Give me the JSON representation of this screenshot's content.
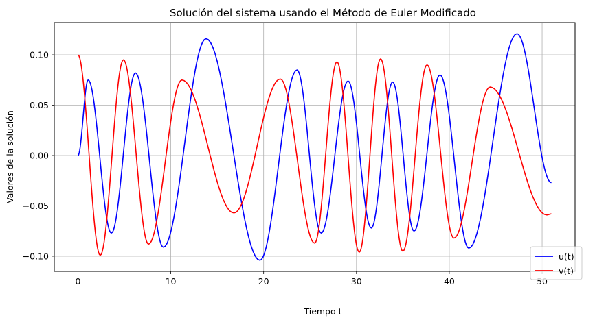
{
  "chart_data": {
    "type": "line",
    "title": "Solución del sistema usando el Método de Euler Modificado",
    "xlabel": "Tiempo t",
    "ylabel": "Valores de la solución",
    "xlim": [
      -2.55,
      53.55
    ],
    "ylim": [
      -0.115,
      0.132
    ],
    "xticks": [
      0,
      10,
      20,
      30,
      40,
      50
    ],
    "xtick_labels": [
      "0",
      "10",
      "20",
      "30",
      "40",
      "50"
    ],
    "yticks": [
      -0.1,
      -0.05,
      0.0,
      0.05,
      0.1
    ],
    "ytick_labels": [
      "−0.10",
      "−0.05",
      "0.00",
      "0.05",
      "0.10"
    ],
    "grid": true,
    "legend_position": "lower-right",
    "series": [
      {
        "name": "u(t)",
        "color": "#0000ff",
        "points": [
          [
            0,
            0
          ],
          [
            1.1,
            0.075
          ],
          [
            3.6,
            -0.077
          ],
          [
            6.2,
            0.082
          ],
          [
            9.2,
            -0.091
          ],
          [
            13.8,
            0.116
          ],
          [
            19.6,
            -0.104
          ],
          [
            23.6,
            0.085
          ],
          [
            26.2,
            -0.077
          ],
          [
            29.1,
            0.074
          ],
          [
            31.6,
            -0.072
          ],
          [
            33.9,
            0.073
          ],
          [
            36.2,
            -0.075
          ],
          [
            39.0,
            0.08
          ],
          [
            42.1,
            -0.092
          ],
          [
            47.3,
            0.121
          ],
          [
            51,
            -0.027
          ]
        ]
      },
      {
        "name": "v(t)",
        "color": "#ff0000",
        "points": [
          [
            0,
            0.1
          ],
          [
            2.4,
            -0.099
          ],
          [
            4.9,
            0.095
          ],
          [
            7.6,
            -0.088
          ],
          [
            11.2,
            0.075
          ],
          [
            16.8,
            -0.057
          ],
          [
            21.8,
            0.076
          ],
          [
            25.5,
            -0.087
          ],
          [
            27.9,
            0.093
          ],
          [
            30.3,
            -0.096
          ],
          [
            32.6,
            0.096
          ],
          [
            35.0,
            -0.095
          ],
          [
            37.6,
            0.09
          ],
          [
            40.5,
            -0.082
          ],
          [
            44.4,
            0.068
          ],
          [
            50.5,
            -0.059
          ],
          [
            51,
            -0.058
          ]
        ]
      }
    ]
  }
}
